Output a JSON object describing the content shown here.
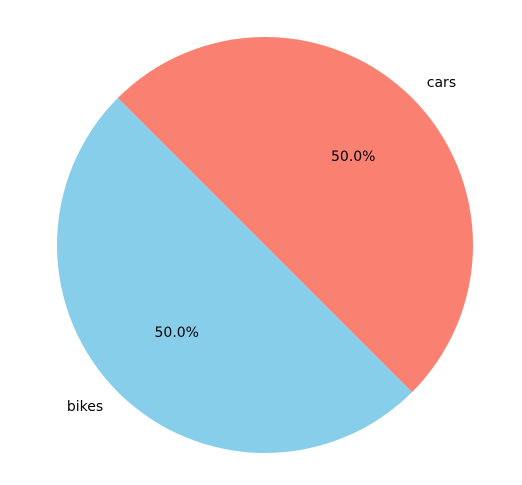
{
  "chart_data": {
    "type": "pie",
    "labels": [
      "bikes",
      "cars"
    ],
    "values": [
      50,
      50
    ],
    "percent_labels": [
      "50.0%",
      "50.0%"
    ],
    "colors": [
      "#87ceeb",
      "#fa8072"
    ],
    "start_angle_deg": 135,
    "direction": "counterclockwise"
  }
}
